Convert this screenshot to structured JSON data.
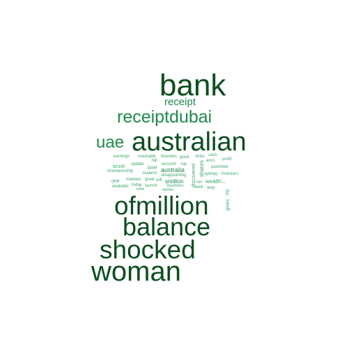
{
  "palette": {
    "dark": "#0b4f1f",
    "mid": "#1e8a4a",
    "light": "#3aaa6a",
    "pale": "#6cc596"
  },
  "words": [
    {
      "text": "bank",
      "color": "dark"
    },
    {
      "text": "receipt",
      "color": "mid"
    },
    {
      "text": "receiptdubai",
      "color": "mid"
    },
    {
      "text": "uae",
      "color": "mid"
    },
    {
      "text": "australian",
      "color": "dark"
    },
    {
      "text": "ofmillion",
      "color": "dark"
    },
    {
      "text": "balance",
      "color": "dark"
    },
    {
      "text": "shocked",
      "color": "dark"
    },
    {
      "text": "woman",
      "color": "dark"
    },
    {
      "text": "earnings",
      "color": "light"
    },
    {
      "text": "mashable",
      "color": "light"
    },
    {
      "text": "fall",
      "color": "light"
    },
    {
      "text": "livenews",
      "color": "light"
    },
    {
      "text": "good",
      "color": "light"
    },
    {
      "text": "sinks",
      "color": "light"
    },
    {
      "text": "cash",
      "color": "light"
    },
    {
      "text": "profit",
      "color": "light"
    },
    {
      "text": "anzs",
      "color": "light"
    },
    {
      "text": "update",
      "color": "light"
    },
    {
      "text": "account",
      "color": "light"
    },
    {
      "text": "top",
      "color": "light"
    },
    {
      "text": "brush",
      "color": "light"
    },
    {
      "text": "brief",
      "color": "light"
    },
    {
      "text": "punished",
      "color": "light"
    },
    {
      "text": "championship",
      "color": "light"
    },
    {
      "text": "australia",
      "color": "mid"
    },
    {
      "text": "zealand",
      "color": "light"
    },
    {
      "text": "disappointing",
      "color": "light"
    },
    {
      "text": "sydney",
      "color": "light"
    },
    {
      "text": "investors",
      "color": "light"
    },
    {
      "text": "one",
      "color": "light"
    },
    {
      "text": "markets",
      "color": "light"
    },
    {
      "text": "great",
      "color": "light"
    },
    {
      "text": "will",
      "color": "light"
    },
    {
      "text": "smillion",
      "color": "mid"
    },
    {
      "text": "fun",
      "color": "light"
    },
    {
      "text": "wealth...",
      "color": "light"
    },
    {
      "text": "available",
      "color": "light"
    },
    {
      "text": "today",
      "color": "light"
    },
    {
      "text": "launch",
      "color": "light"
    },
    {
      "text": "business",
      "color": "light"
    },
    {
      "text": "seek",
      "color": "light"
    },
    {
      "text": "amp",
      "color": "light"
    },
    {
      "text": "new",
      "color": "light"
    },
    {
      "text": "series",
      "color": "light"
    },
    {
      "text": "shares",
      "color": "light"
    },
    {
      "text": "discovered",
      "color": "light"
    },
    {
      "text": "gives",
      "color": "light"
    },
    {
      "text": "big",
      "color": "light"
    }
  ]
}
